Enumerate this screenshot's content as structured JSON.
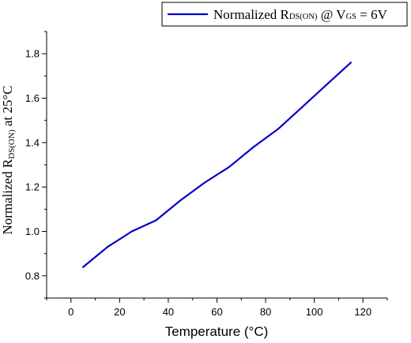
{
  "chart_data": {
    "type": "line",
    "title": "",
    "xlabel": "Temperature (°C)",
    "ylabel": {
      "prefix": "Normalized R",
      "subscript": "DS(ON)",
      "suffix": " at 25°C"
    },
    "xlim": [
      -10,
      130
    ],
    "ylim": [
      0.7,
      1.9
    ],
    "x_ticks": [
      0,
      20,
      40,
      60,
      80,
      100,
      120
    ],
    "y_ticks": [
      0.8,
      1.0,
      1.2,
      1.4,
      1.6,
      1.8
    ],
    "x_tick_labels": [
      "0",
      "20",
      "40",
      "60",
      "80",
      "100",
      "120"
    ],
    "y_tick_labels": [
      "0.8",
      "1.0",
      "1.2",
      "1.4",
      "1.6",
      "1.8"
    ],
    "legend_position": "top-right",
    "series": [
      {
        "legend": {
          "p1": "Normalized R",
          "s1": "DS(ON)",
          "p2": " @ V",
          "s2": "GS",
          "p3": " = 6V"
        },
        "color": "#0000cc",
        "x": [
          5,
          15,
          25,
          35,
          45,
          55,
          65,
          75,
          85,
          95,
          105,
          115
        ],
        "y": [
          0.84,
          0.93,
          1.0,
          1.05,
          1.14,
          1.22,
          1.29,
          1.38,
          1.46,
          1.56,
          1.66,
          1.76
        ]
      }
    ]
  }
}
